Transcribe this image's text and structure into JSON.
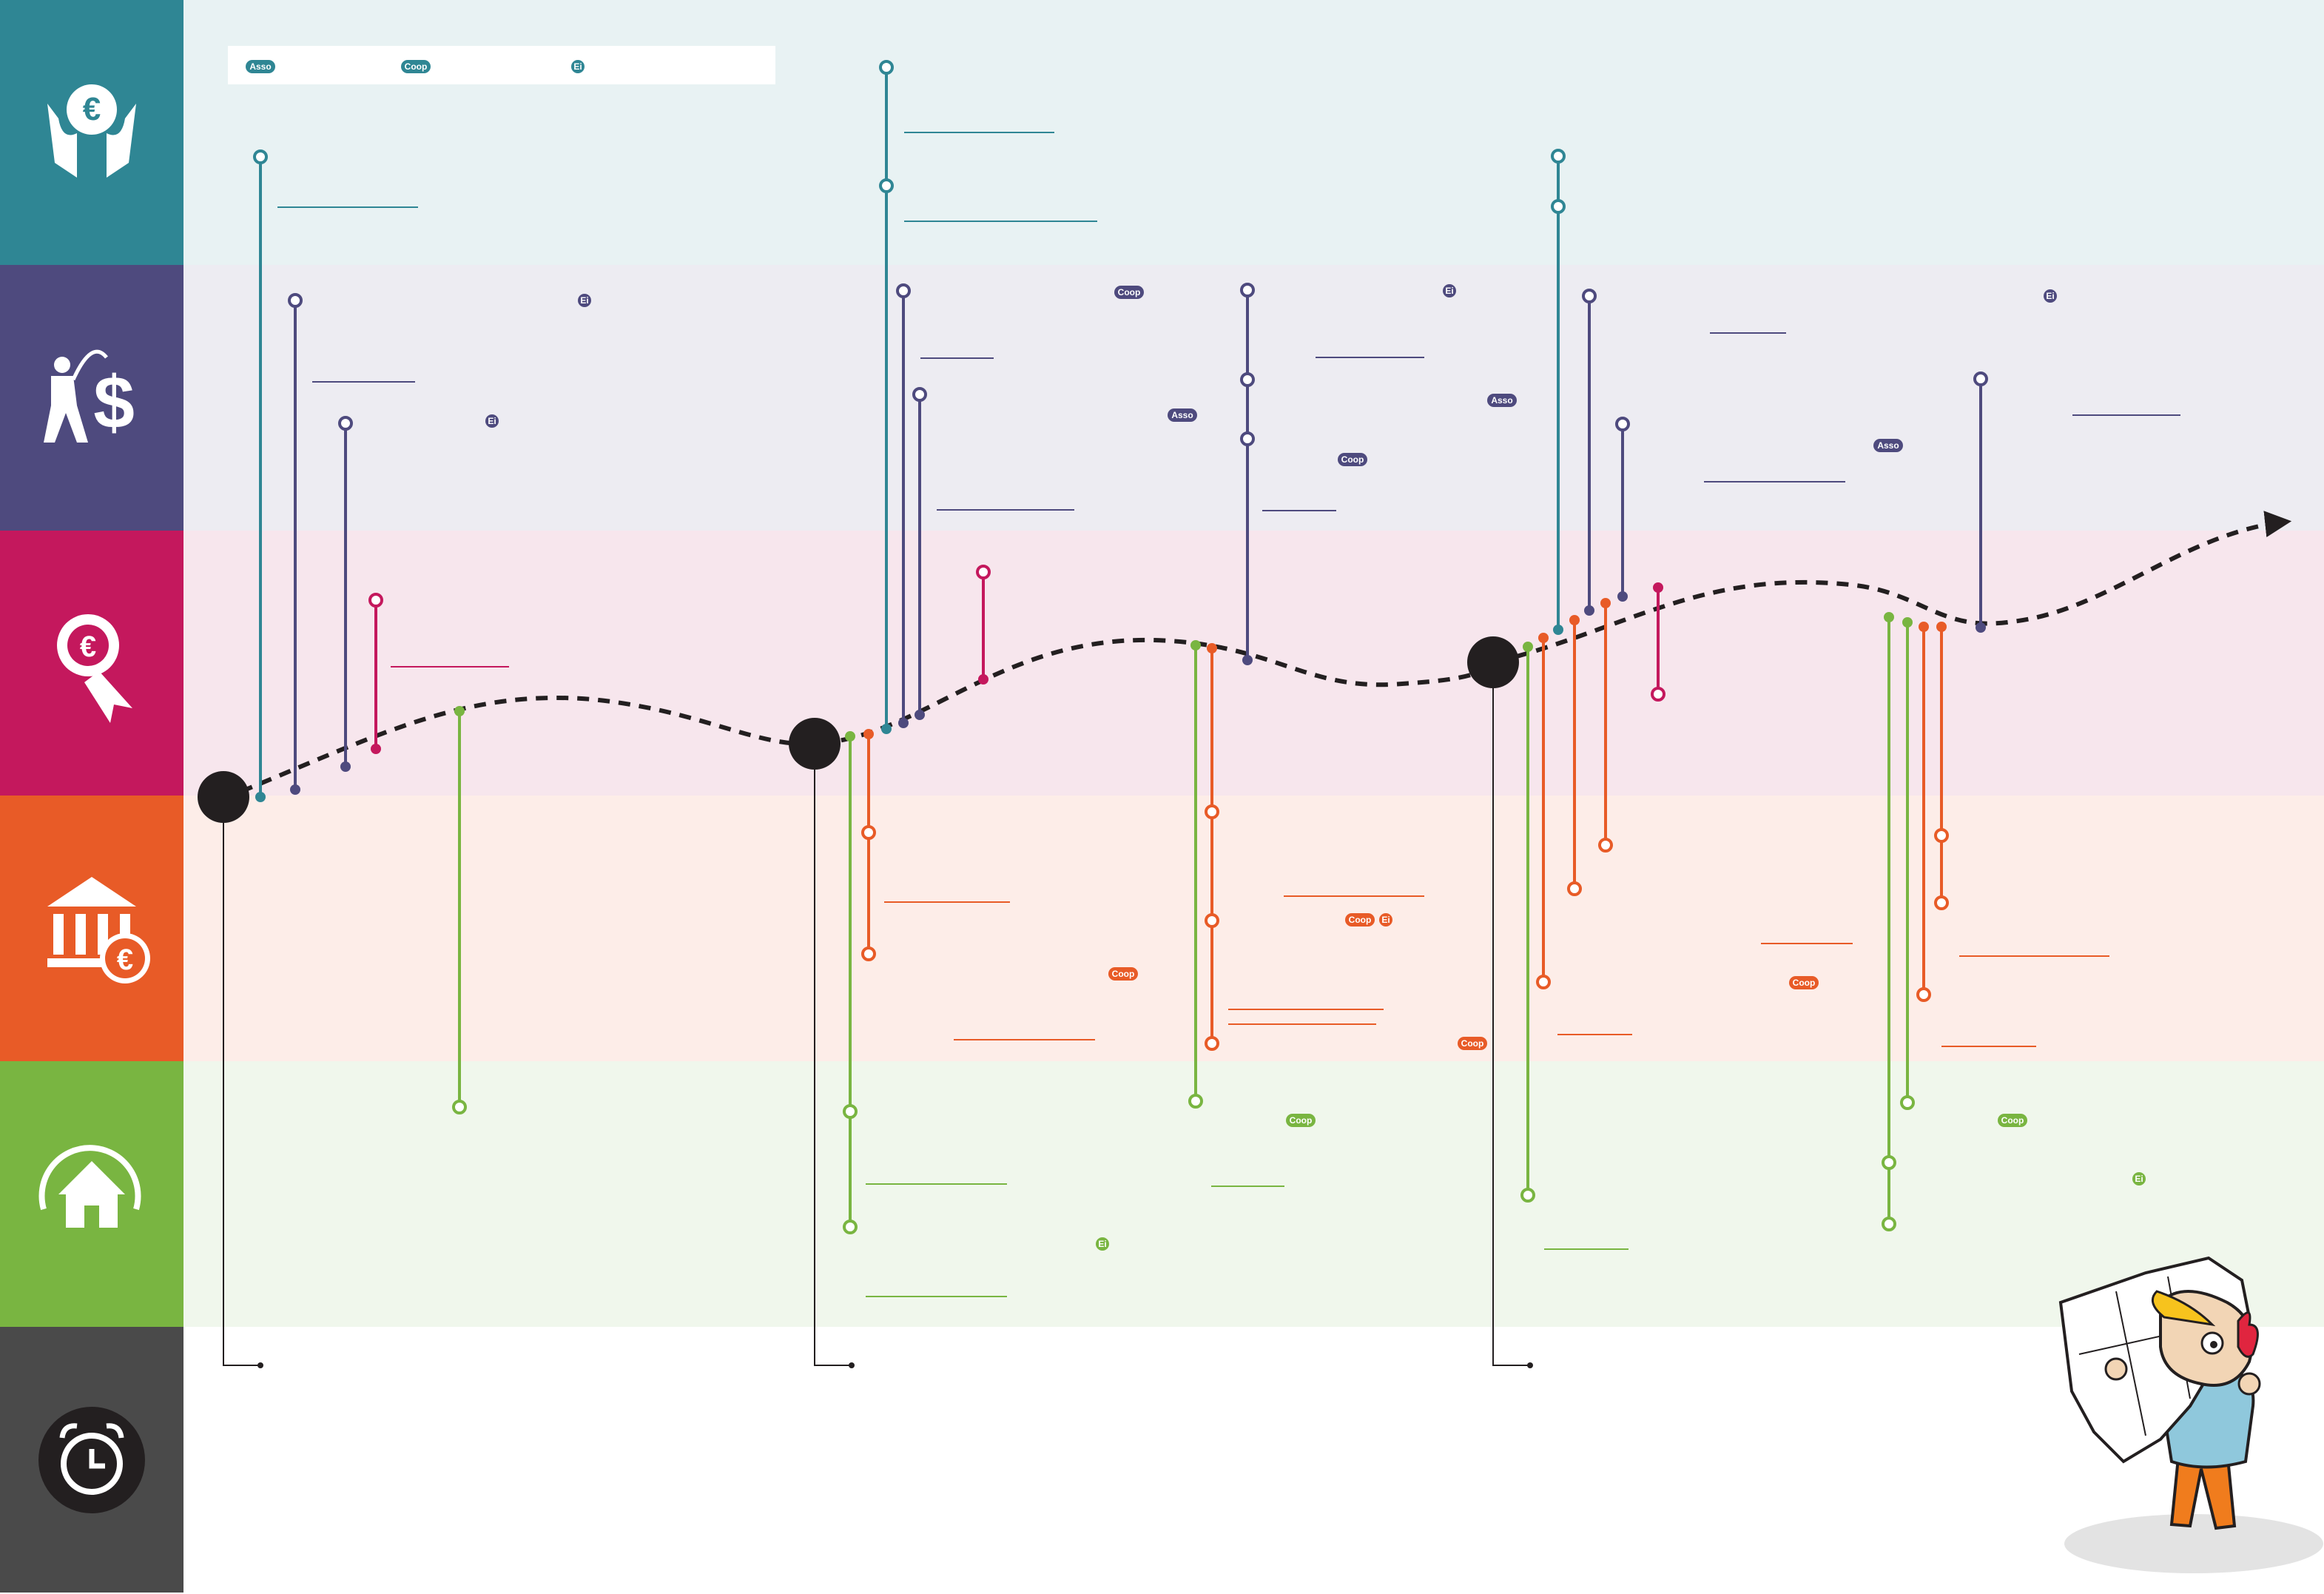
{
  "colors": {
    "funding": "#2f8694",
    "fundraising": "#4e4a7e",
    "award": "#c4185d",
    "bank": "#e85b27",
    "housing": "#79b541",
    "time": "#4a4a4a",
    "timeline": "#231f20"
  },
  "bands": [
    {
      "key": "funding",
      "icon": "hands-euro-icon",
      "tint": "#e8f2f3"
    },
    {
      "key": "fundraising",
      "icon": "fishing-dollar-icon",
      "tint": "#edecf2"
    },
    {
      "key": "award",
      "icon": "euro-rosette-icon",
      "tint": "#f7e6ed"
    },
    {
      "key": "bank",
      "icon": "bank-euro-icon",
      "tint": "#fdede8"
    },
    {
      "key": "housing",
      "icon": "house-cycle-icon",
      "tint": "#f0f7ec"
    },
    {
      "key": "time",
      "icon": "alarm-clock-icon",
      "tint": "#ffffff"
    }
  ],
  "legend": {
    "items": [
      {
        "label": "Asso",
        "color": "funding"
      },
      {
        "label": "Coop",
        "color": "funding"
      },
      {
        "label": "Ei",
        "color": "funding"
      }
    ]
  },
  "badges": [
    {
      "label": "Ei",
      "band": "fundraising"
    },
    {
      "label": "Ei",
      "band": "fundraising"
    },
    {
      "label": "Coop",
      "band": "fundraising"
    },
    {
      "label": "Asso",
      "band": "fundraising"
    },
    {
      "label": "Coop",
      "band": "fundraising"
    },
    {
      "label": "Ei",
      "band": "fundraising"
    },
    {
      "label": "Asso",
      "band": "fundraising"
    },
    {
      "label": "Asso",
      "band": "fundraising"
    },
    {
      "label": "Ei",
      "band": "fundraising"
    },
    {
      "label": "Coop",
      "band": "bank"
    },
    {
      "label": "Ei",
      "band": "bank"
    },
    {
      "label": "Coop",
      "band": "bank"
    },
    {
      "label": "Coop",
      "band": "bank"
    },
    {
      "label": "Coop",
      "band": "bank"
    },
    {
      "label": "Coop",
      "band": "housing"
    },
    {
      "label": "Coop",
      "band": "housing"
    },
    {
      "label": "Ei",
      "band": "housing"
    },
    {
      "label": "Ei",
      "band": "housing"
    }
  ],
  "milestones": [
    {
      "name": "stage-1"
    },
    {
      "name": "stage-2"
    },
    {
      "name": "stage-3"
    }
  ],
  "illustration": "character-reading-map"
}
